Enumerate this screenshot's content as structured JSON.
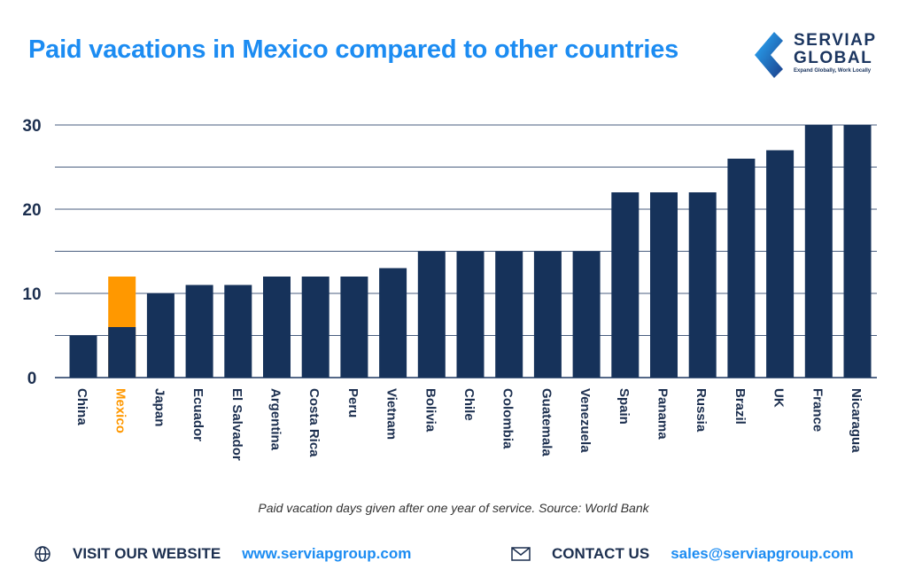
{
  "header": {
    "title": "Paid vacations in Mexico compared to other countries"
  },
  "logo": {
    "brand_line1": "SERVIAP",
    "brand_line2": "GLOBAL",
    "tagline": "Expand Globally, Work Locally"
  },
  "chart_data": {
    "type": "bar",
    "stacked_highlight": "Mexico",
    "categories": [
      "China",
      "Mexico",
      "Japan",
      "Ecuador",
      "El Salvador",
      "Argentina",
      "Costa Rica",
      "Peru",
      "Vietnam",
      "Bolivia",
      "Chile",
      "Colombia",
      "Guatemala",
      "Venezuela",
      "Spain",
      "Panama",
      "Russia",
      "Brazil",
      "UK",
      "France",
      "Nicaragua"
    ],
    "values": [
      5,
      12,
      10,
      11,
      11,
      12,
      12,
      12,
      13,
      15,
      15,
      15,
      15,
      15,
      22,
      22,
      22,
      26,
      27,
      30,
      30
    ],
    "mexico_base_value": 6,
    "yticks": [
      0,
      10,
      20,
      30
    ],
    "gridlines": [
      5,
      10,
      15,
      20,
      25,
      30
    ],
    "ylim": [
      0,
      30
    ],
    "grid": true,
    "colors": {
      "bar": "#16325a",
      "highlight": "#ff9800",
      "highlight_label": "#ff9800",
      "grid": "#1c3660"
    }
  },
  "caption": "Paid vacation days given after one year of service. Source: World Bank",
  "footer": {
    "website_label": "VISIT OUR WEBSITE",
    "website": "www.serviapgroup.com",
    "website_icon": "globe-icon",
    "contact_label": "CONTACT US",
    "email": "sales@serviapgroup.com",
    "contact_icon": "envelope-icon"
  }
}
